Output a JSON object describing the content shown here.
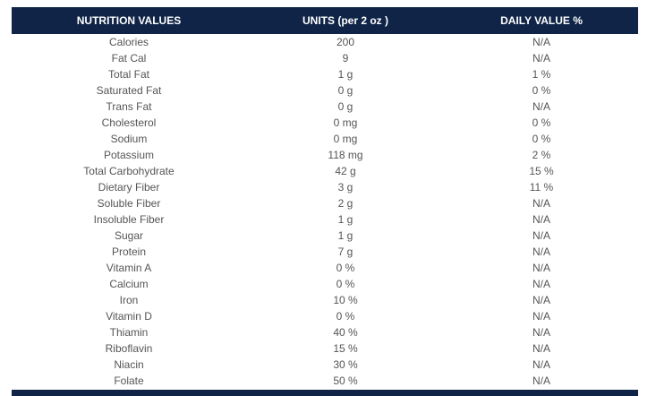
{
  "table": {
    "headers": [
      "NUTRITION VALUES",
      "UNITS (per 2 oz )",
      "DAILY VALUE %"
    ],
    "rows": [
      [
        "Calories",
        "200",
        "N/A"
      ],
      [
        "Fat Cal",
        "9",
        "N/A"
      ],
      [
        "Total Fat",
        "1 g",
        "1 %"
      ],
      [
        "Saturated Fat",
        "0 g",
        "0 %"
      ],
      [
        "Trans Fat",
        "0 g",
        "N/A"
      ],
      [
        "Cholesterol",
        "0 mg",
        "0 %"
      ],
      [
        "Sodium",
        "0 mg",
        "0 %"
      ],
      [
        "Potassium",
        "118 mg",
        "2 %"
      ],
      [
        "Total Carbohydrate",
        "42 g",
        "15 %"
      ],
      [
        "Dietary Fiber",
        "3 g",
        "11 %"
      ],
      [
        "Soluble Fiber",
        "2 g",
        "N/A"
      ],
      [
        "Insoluble Fiber",
        "1 g",
        "N/A"
      ],
      [
        "Sugar",
        "1 g",
        "N/A"
      ],
      [
        "Protein",
        "7 g",
        "N/A"
      ],
      [
        "Vitamin A",
        "0 %",
        "N/A"
      ],
      [
        "Calcium",
        "0 %",
        "N/A"
      ],
      [
        "Iron",
        "10 %",
        "N/A"
      ],
      [
        "Vitamin D",
        "0 %",
        "N/A"
      ],
      [
        "Thiamin",
        "40 %",
        "N/A"
      ],
      [
        "Riboflavin",
        "15 %",
        "N/A"
      ],
      [
        "Niacin",
        "30 %",
        "N/A"
      ],
      [
        "Folate",
        "50 %",
        "N/A"
      ]
    ]
  },
  "colors": {
    "header_bg": "#0f2447",
    "header_text": "#ffffff",
    "body_text": "#555555"
  }
}
